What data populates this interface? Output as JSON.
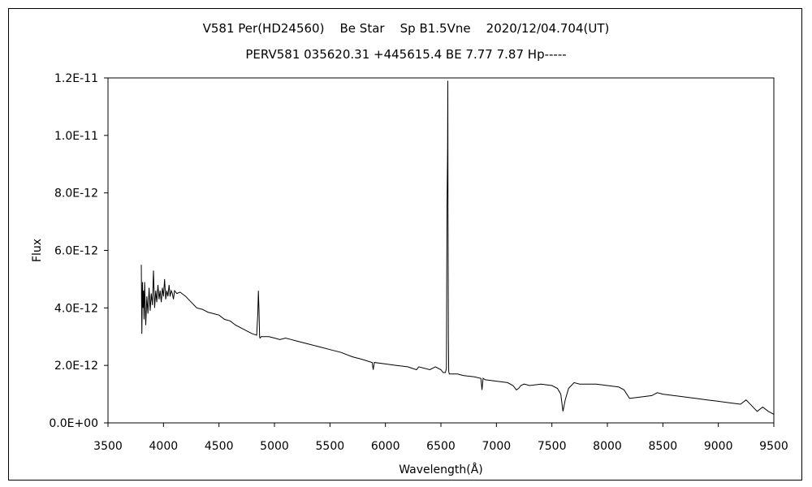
{
  "chart_data": {
    "type": "line",
    "title": "V581 Per(HD24560)    Be Star    Sp B1.5Vne    2020/12/04.704(UT)",
    "subtitle": "PERV581 035620.31 +445615.4 BE 7.77 7.87 Hp-----",
    "xlabel": "Wavelength(Å)",
    "ylabel": "Flux",
    "xlim": [
      3500,
      9500
    ],
    "ylim": [
      0,
      1.2e-11
    ],
    "x_ticks": [
      "3500",
      "4000",
      "4500",
      "5000",
      "5500",
      "6000",
      "6500",
      "7000",
      "7500",
      "8000",
      "8500",
      "9000",
      "9500"
    ],
    "y_ticks": [
      "0.0E+00",
      "2.0E-12",
      "4.0E-12",
      "6.0E-12",
      "8.0E-12",
      "1.0E-11",
      "1.2E-11"
    ],
    "grid": false,
    "legend": "none",
    "line_color": "#000000",
    "series": [
      {
        "x": [
          3800,
          3805,
          3810,
          3815,
          3820,
          3825,
          3830,
          3840,
          3850,
          3860,
          3870,
          3880,
          3890,
          3900,
          3910,
          3920,
          3930,
          3940,
          3950,
          3960,
          3970,
          3980,
          3990,
          4000,
          4010,
          4020,
          4030,
          4040,
          4050,
          4060,
          4070,
          4080,
          4090,
          4100,
          4120,
          4150,
          4200,
          4250,
          4300,
          4350,
          4400,
          4450,
          4500,
          4550,
          4600,
          4650,
          4700,
          4750,
          4800,
          4840,
          4850,
          4855,
          4861,
          4866,
          4870,
          4880,
          4900,
          4950,
          5000,
          5050,
          5100,
          5150,
          5200,
          5300,
          5400,
          5500,
          5600,
          5700,
          5800,
          5880,
          5890,
          5900,
          6000,
          6100,
          6200,
          6280,
          6300,
          6400,
          6450,
          6500,
          6520,
          6540,
          6550,
          6555,
          6560,
          6562,
          6564,
          6567,
          6570,
          6575,
          6590,
          6650,
          6700,
          6800,
          6860,
          6870,
          6880,
          6900,
          7000,
          7100,
          7150,
          7180,
          7200,
          7220,
          7250,
          7300,
          7400,
          7500,
          7550,
          7580,
          7600,
          7620,
          7650,
          7700,
          7750,
          7800,
          7900,
          8000,
          8100,
          8150,
          8200,
          8300,
          8400,
          8450,
          8500,
          8600,
          8700,
          8800,
          8900,
          9000,
          9100,
          9200,
          9250,
          9300,
          9350,
          9400,
          9450,
          9500
        ],
        "y": [
          5.5e-12,
          3.1e-12,
          4.9e-12,
          4e-12,
          4.6e-12,
          3.6e-12,
          4.9e-12,
          3.4e-12,
          4.4e-12,
          3.8e-12,
          4.7e-12,
          3.9e-12,
          4.5e-12,
          4.1e-12,
          5.3e-12,
          4e-12,
          4.6e-12,
          4.2e-12,
          4.8e-12,
          4.3e-12,
          4.6e-12,
          4.2e-12,
          4.7e-12,
          4.4e-12,
          5e-12,
          4.3e-12,
          4.6e-12,
          4.4e-12,
          4.8e-12,
          4.4e-12,
          4.6e-12,
          4.5e-12,
          4.3e-12,
          4.6e-12,
          4.5e-12,
          4.55e-12,
          4.4e-12,
          4.2e-12,
          4e-12,
          3.95e-12,
          3.85e-12,
          3.8e-12,
          3.75e-12,
          3.6e-12,
          3.55e-12,
          3.4e-12,
          3.3e-12,
          3.2e-12,
          3.1e-12,
          3.05e-12,
          3.8e-12,
          4.6e-12,
          3.9e-12,
          3e-12,
          2.95e-12,
          3e-12,
          3e-12,
          3e-12,
          2.95e-12,
          2.9e-12,
          2.95e-12,
          2.9e-12,
          2.85e-12,
          2.75e-12,
          2.65e-12,
          2.55e-12,
          2.45e-12,
          2.3e-12,
          2.2e-12,
          2.1e-12,
          1.85e-12,
          2.1e-12,
          2.05e-12,
          2e-12,
          1.95e-12,
          1.85e-12,
          1.95e-12,
          1.85e-12,
          1.95e-12,
          1.85e-12,
          1.75e-12,
          1.75e-12,
          1.9e-12,
          7.5e-12,
          9.5e-12,
          1.19e-11,
          8e-12,
          3e-12,
          1.8e-12,
          1.7e-12,
          1.7e-12,
          1.7e-12,
          1.65e-12,
          1.6e-12,
          1.55e-12,
          1.15e-12,
          1.55e-12,
          1.5e-12,
          1.45e-12,
          1.4e-12,
          1.3e-12,
          1.15e-12,
          1.2e-12,
          1.3e-12,
          1.35e-12,
          1.3e-12,
          1.35e-12,
          1.3e-12,
          1.2e-12,
          1e-12,
          4e-13,
          8e-13,
          1.2e-12,
          1.4e-12,
          1.35e-12,
          1.35e-12,
          1.35e-12,
          1.3e-12,
          1.25e-12,
          1.15e-12,
          8.5e-13,
          9e-13,
          9.5e-13,
          1.05e-12,
          1e-12,
          9.5e-13,
          9e-13,
          8.5e-13,
          8e-13,
          7.5e-13,
          7e-13,
          6.5e-13,
          8e-13,
          6e-13,
          4e-13,
          5.5e-13,
          4e-13,
          3e-13
        ]
      }
    ]
  }
}
